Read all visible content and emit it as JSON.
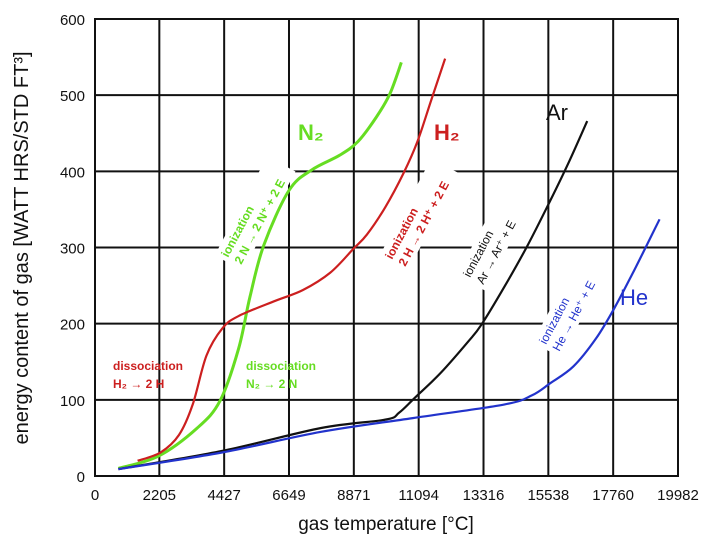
{
  "chart_data": {
    "type": "line",
    "xlabel": "gas temperature [°C]",
    "ylabel": "energy content of gas [WATT HRS/STD FT³]",
    "xlim": [
      0,
      19982
    ],
    "ylim": [
      0,
      600
    ],
    "xticks": [
      "0",
      "2205",
      "4427",
      "6649",
      "8871",
      "11094",
      "13316",
      "15538",
      "17760",
      "19982"
    ],
    "yticks": [
      "0",
      "100",
      "200",
      "300",
      "400",
      "500",
      "600"
    ],
    "grid": true,
    "series": [
      {
        "name": "N2",
        "color": "#66dd22",
        "points": [
          [
            800,
            10
          ],
          [
            2170,
            26
          ],
          [
            3505,
            63
          ],
          [
            4290,
            99
          ],
          [
            4920,
            167
          ],
          [
            5310,
            235
          ],
          [
            5785,
            303
          ],
          [
            6650,
            375
          ],
          [
            7435,
            402
          ],
          [
            8380,
            421
          ],
          [
            9010,
            439
          ],
          [
            9640,
            471
          ],
          [
            10110,
            502
          ],
          [
            10500,
            543
          ]
        ]
      },
      {
        "name": "H2",
        "color": "#cc1f1f",
        "points": [
          [
            1460,
            20
          ],
          [
            2250,
            31
          ],
          [
            2880,
            54
          ],
          [
            3350,
            94
          ],
          [
            3820,
            158
          ],
          [
            4370,
            194
          ],
          [
            4920,
            210
          ],
          [
            6180,
            230
          ],
          [
            7120,
            244
          ],
          [
            8065,
            267
          ],
          [
            8850,
            298
          ],
          [
            9320,
            317
          ],
          [
            9950,
            353
          ],
          [
            10580,
            398
          ],
          [
            11050,
            439
          ],
          [
            11520,
            493
          ],
          [
            12000,
            548
          ]
        ]
      },
      {
        "name": "Ar",
        "color": "#111111",
        "points": [
          [
            800,
            9
          ],
          [
            4370,
            33
          ],
          [
            7750,
            63
          ],
          [
            9950,
            74
          ],
          [
            10420,
            83
          ],
          [
            10970,
            103
          ],
          [
            11840,
            135
          ],
          [
            12780,
            176
          ],
          [
            13250,
            199
          ],
          [
            14040,
            249
          ],
          [
            14830,
            303
          ],
          [
            15610,
            362
          ],
          [
            16240,
            412
          ],
          [
            16870,
            466
          ]
        ]
      },
      {
        "name": "He",
        "color": "#2233cc",
        "points": [
          [
            800,
            9
          ],
          [
            4370,
            31
          ],
          [
            7750,
            58
          ],
          [
            10890,
            76
          ],
          [
            14040,
            94
          ],
          [
            14980,
            106
          ],
          [
            15610,
            122
          ],
          [
            16400,
            144
          ],
          [
            17180,
            181
          ],
          [
            17810,
            221
          ],
          [
            18440,
            267
          ],
          [
            18910,
            303
          ],
          [
            19350,
            337
          ]
        ]
      }
    ],
    "annotations": {
      "h2_diss_1": "dissociation",
      "h2_diss_2": "H₂ → 2 H",
      "n2_diss_1": "dissociation",
      "n2_diss_2": "N₂ → 2 N",
      "n2_ion_1": "ionization",
      "n2_ion_2": "2 N → 2 N⁺ + 2 E",
      "h2_ion_1": "ionization",
      "h2_ion_2": "2 H → 2 H⁺ + 2 E",
      "ar_ion_1": "ionization",
      "ar_ion_2": "Ar → Ar⁺ + E",
      "he_ion_1": "ionization",
      "he_ion_2": "He → He⁺ + E"
    },
    "series_labels": {
      "n2": "N₂",
      "h2": "H₂",
      "ar": "Ar",
      "he": "He"
    }
  }
}
